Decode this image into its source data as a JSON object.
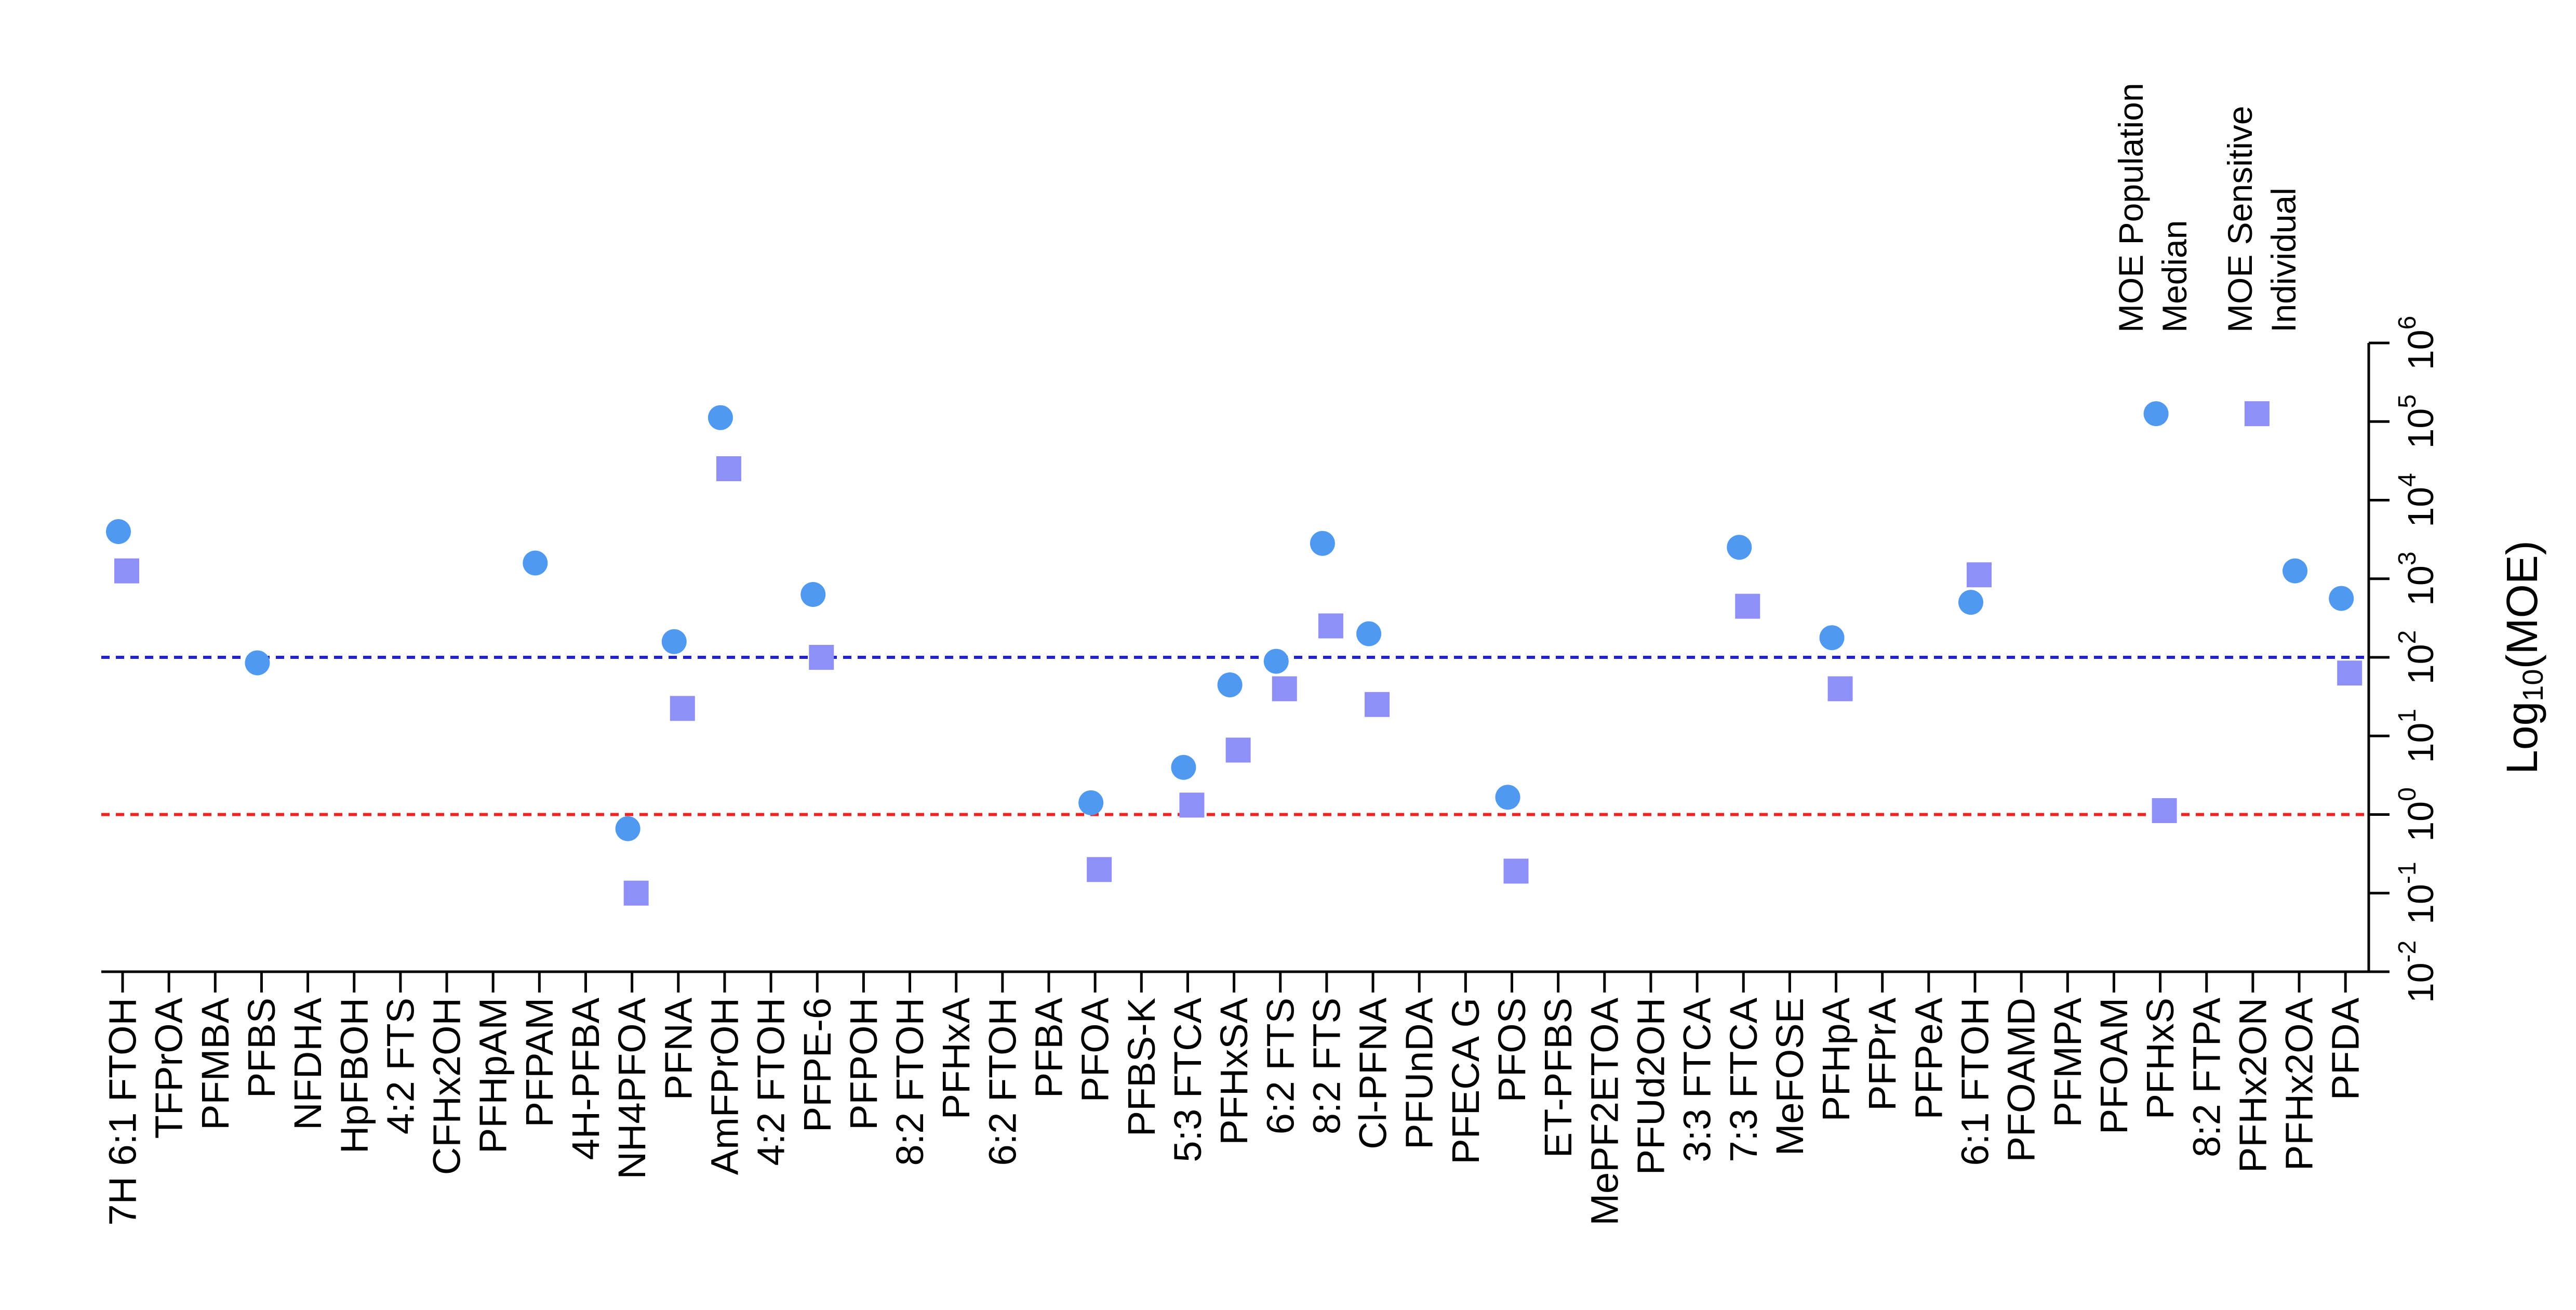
{
  "chart_data": {
    "type": "scatter",
    "categories": [
      "7H 6:1 FTOH",
      "TFPrOA",
      "PFMBA",
      "PFBS",
      "NFDHA",
      "HpFBOH",
      "4:2 FTS",
      "CFHx2OH",
      "PFHpAM",
      "PFPAM",
      "4H-PFBA",
      "NH4PFOA",
      "PFNA",
      "AmFPrOH",
      "4:2 FTOH",
      "PFPE-6",
      "PFPOH",
      "8:2 FTOH",
      "PFHxA",
      "6:2 FTOH",
      "PFBA",
      "PFOA",
      "PFBS-K",
      "5:3 FTCA",
      "PFHxSA",
      "6:2 FTS",
      "8:2 FTS",
      "Cl-PFNA",
      "PFUnDA",
      "PFECA G",
      "PFOS",
      "ET-PFBS",
      "MePF2ETOA",
      "PFUd2OH",
      "3:3 FTCA",
      "7:3 FTCA",
      "MeFOSE",
      "PFHpA",
      "PFPrA",
      "PFPeA",
      "6:1 FTOH",
      "PFOAMD",
      "PFMPA",
      "PFOAM",
      "PFHxS",
      "8:2 FTPA",
      "PFHx2ON",
      "PFHx2OA",
      "PFDA"
    ],
    "series": [
      {
        "name": "MOE Population Median",
        "marker": "circle",
        "color": "#4f99f0",
        "values": [
          3.6,
          null,
          null,
          1.93,
          null,
          null,
          null,
          null,
          null,
          3.2,
          null,
          -0.18,
          2.2,
          5.05,
          null,
          2.8,
          null,
          null,
          null,
          null,
          null,
          0.15,
          null,
          0.6,
          1.65,
          1.95,
          3.45,
          2.3,
          null,
          null,
          0.22,
          null,
          null,
          null,
          null,
          3.4,
          null,
          2.25,
          null,
          null,
          2.7,
          null,
          null,
          null,
          5.1,
          null,
          null,
          3.1,
          2.75
        ]
      },
      {
        "name": "MOE Sensitive Individual",
        "marker": "square",
        "color": "#8f8ff8",
        "values": [
          3.1,
          null,
          null,
          null,
          null,
          null,
          null,
          null,
          null,
          null,
          null,
          -1.0,
          1.35,
          4.4,
          null,
          2.0,
          null,
          null,
          null,
          null,
          null,
          -0.7,
          null,
          0.12,
          0.82,
          1.6,
          2.4,
          1.4,
          null,
          null,
          -0.72,
          null,
          null,
          null,
          null,
          2.65,
          null,
          1.6,
          null,
          null,
          3.05,
          null,
          null,
          null,
          0.05,
          null,
          5.1,
          null,
          1.8
        ]
      }
    ],
    "reference_lines": [
      {
        "y": 2,
        "color": "#2222cc",
        "style": "dashed"
      },
      {
        "y": 0,
        "color": "#ee2222",
        "style": "dashed"
      }
    ],
    "ylabel": "Log10(MOE)",
    "ylim": [
      -2,
      6
    ],
    "yticks": [
      {
        "base": "10",
        "exp": "-2"
      },
      {
        "base": "10",
        "exp": "-1"
      },
      {
        "base": "10",
        "exp": "0"
      },
      {
        "base": "10",
        "exp": "1"
      },
      {
        "base": "10",
        "exp": "2"
      },
      {
        "base": "10",
        "exp": "3"
      },
      {
        "base": "10",
        "exp": "4"
      },
      {
        "base": "10",
        "exp": "5"
      },
      {
        "base": "10",
        "exp": "6"
      }
    ],
    "legend": [
      {
        "lines": [
          "MOE Population",
          "Median"
        ],
        "marker": "circle",
        "color": "#4f99f0"
      },
      {
        "lines": [
          "MOE Sensitive",
          "Individual"
        ],
        "marker": "square",
        "color": "#8f8ff8"
      }
    ],
    "legend_position": "top-right",
    "grid": false
  }
}
